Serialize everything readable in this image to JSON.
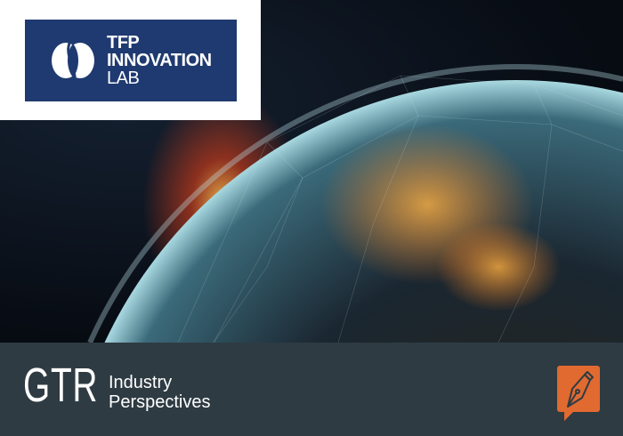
{
  "logo": {
    "line1": "TFP",
    "line2": "INNOVATION",
    "line3": "LAB",
    "bg_color": "#1f3a70"
  },
  "footer": {
    "brand": "GTR",
    "subtitle_line1": "Industry",
    "subtitle_line2": "Perspectives",
    "bg_color": "#2e3b43",
    "icon": "fountain-pen-speech-bubble-icon",
    "icon_color": "#e06a30"
  }
}
